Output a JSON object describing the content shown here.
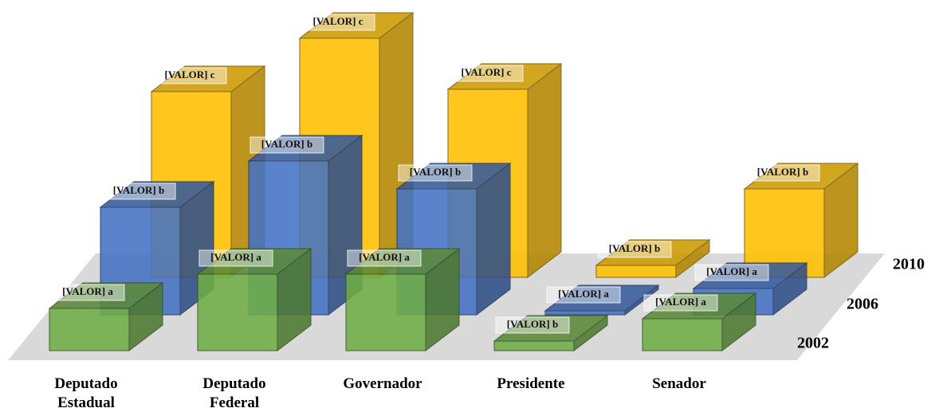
{
  "chart_data": {
    "type": "bar3d",
    "categories": [
      "Deputado Estadual",
      "Deputado Federal",
      "Governador",
      "Presidente",
      "Senador"
    ],
    "series": [
      {
        "name": "2002",
        "color": "#70ad47",
        "values": [
          53,
          96,
          96,
          12,
          40
        ],
        "value_labels": [
          "[VALOR] a",
          "[VALOR] a",
          "[VALOR] a",
          "[VALOR] b",
          "[VALOR] a"
        ]
      },
      {
        "name": "2006",
        "color": "#4472c4",
        "values": [
          135,
          193,
          158,
          5,
          33
        ],
        "value_labels": [
          "[VALOR] b",
          "[VALOR] b",
          "[VALOR] b",
          "[VALOR] a",
          "[VALOR] a"
        ]
      },
      {
        "name": "2010",
        "color": "#ffc000",
        "values": [
          233,
          300,
          236,
          15,
          111
        ],
        "value_labels": [
          "[VALOR] c",
          "[VALOR] c",
          "[VALOR] c",
          "[VALOR] b",
          "[VALOR] b"
        ]
      }
    ]
  }
}
